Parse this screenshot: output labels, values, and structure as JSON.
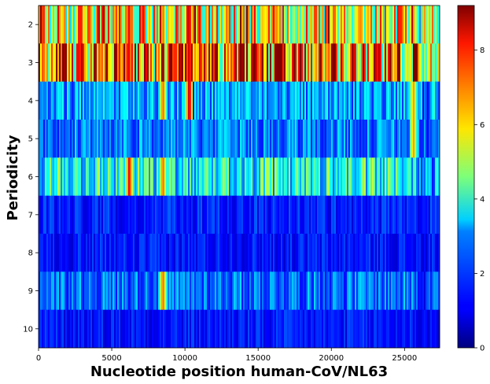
{
  "chart_data": {
    "type": "heatmap",
    "title": "",
    "xlabel": "Nucleotide position human-CoV/NL63",
    "ylabel": "Periodicity",
    "xlim": [
      0,
      27400
    ],
    "x_ticks": [
      0,
      5000,
      10000,
      15000,
      20000,
      25000
    ],
    "x_tick_labels": [
      "0",
      "5000",
      "10000",
      "15000",
      "20000",
      "25000"
    ],
    "rows": [
      {
        "periodicity": 2,
        "label": "2",
        "mean_value": 5.6
      },
      {
        "periodicity": 3,
        "label": "3",
        "mean_value": 6.5
      },
      {
        "periodicity": 4,
        "label": "4",
        "mean_value": 2.6
      },
      {
        "periodicity": 5,
        "label": "5",
        "mean_value": 2.3
      },
      {
        "periodicity": 6,
        "label": "6",
        "mean_value": 3.6
      },
      {
        "periodicity": 7,
        "label": "7",
        "mean_value": 1.4
      },
      {
        "periodicity": 8,
        "label": "8",
        "mean_value": 1.3
      },
      {
        "periodicity": 9,
        "label": "9",
        "mean_value": 2.2
      },
      {
        "periodicity": 10,
        "label": "10",
        "mean_value": 1.3
      }
    ],
    "hotspots": [
      {
        "position": 6200,
        "rows": [
          2,
          3,
          6
        ],
        "value": 8.5
      },
      {
        "position": 8500,
        "rows": [
          2,
          4,
          6,
          9
        ],
        "value": 7.5
      },
      {
        "position": 10300,
        "rows": [
          2,
          3,
          4
        ],
        "value": 9.0
      },
      {
        "position": 20200,
        "rows": [
          2,
          3
        ],
        "value": 8.0
      },
      {
        "position": 25600,
        "rows": [
          2,
          4,
          5
        ],
        "value": 7.0
      }
    ],
    "colorbar": {
      "colormap": "jet",
      "min": 0,
      "max": 9.2,
      "ticks": [
        0,
        2,
        4,
        6,
        8
      ],
      "tick_labels": [
        "0",
        "2",
        "4",
        "6",
        "8"
      ]
    }
  }
}
